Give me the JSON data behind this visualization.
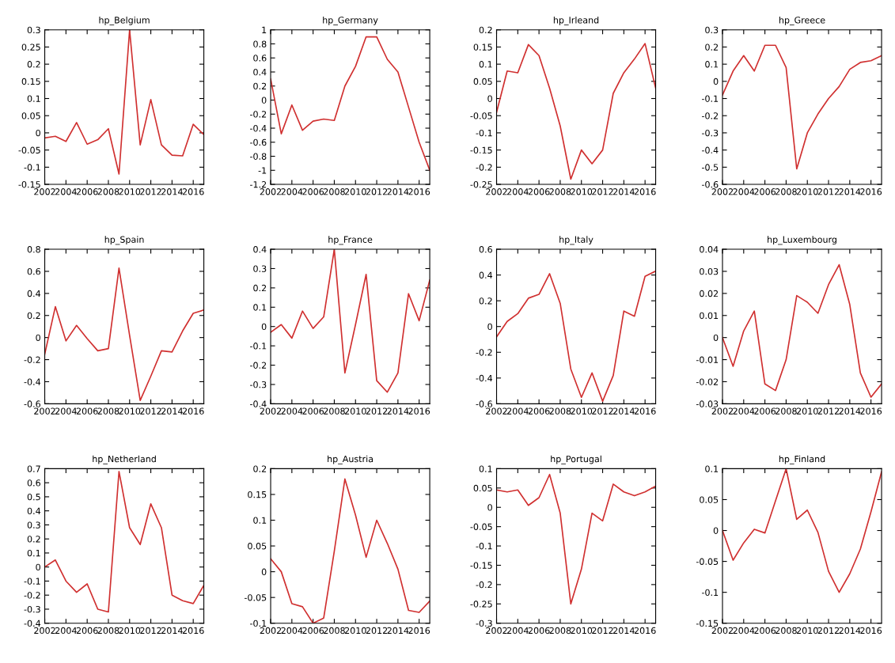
{
  "chart_data": [
    {
      "type": "line",
      "title": "hp_Belgium",
      "x": [
        2002,
        2003,
        2004,
        2005,
        2006,
        2007,
        2008,
        2009,
        2010,
        2011,
        2012,
        2013,
        2014,
        2015,
        2016,
        2017
      ],
      "series": [
        {
          "color": "#d03030",
          "values": [
            -0.015,
            -0.01,
            -0.025,
            0.03,
            -0.033,
            -0.02,
            0.012,
            -0.12,
            0.3,
            -0.035,
            0.097,
            -0.035,
            -0.065,
            -0.067,
            0.025,
            -0.005
          ]
        }
      ],
      "xlim": [
        2002,
        2017
      ],
      "xticks": [
        2002,
        2004,
        2006,
        2008,
        2010,
        2012,
        2014,
        2016
      ],
      "ylim": [
        -0.15,
        0.3
      ],
      "yticks": [
        -0.15,
        -0.1,
        -0.05,
        0,
        0.05,
        0.1,
        0.15,
        0.2,
        0.25,
        0.3
      ],
      "grid": false
    },
    {
      "type": "line",
      "title": "hp_Germany",
      "x": [
        2002,
        2003,
        2004,
        2005,
        2006,
        2007,
        2008,
        2009,
        2010,
        2011,
        2012,
        2013,
        2014,
        2015,
        2016,
        2017
      ],
      "series": [
        {
          "color": "#d03030",
          "values": [
            0.3,
            -0.48,
            -0.07,
            -0.43,
            -0.3,
            -0.27,
            -0.29,
            0.2,
            0.48,
            0.9,
            0.9,
            0.58,
            0.4,
            -0.1,
            -0.6,
            -1.0
          ]
        }
      ],
      "xlim": [
        2002,
        2017
      ],
      "xticks": [
        2002,
        2004,
        2006,
        2008,
        2010,
        2012,
        2014,
        2016
      ],
      "ylim": [
        -1.2,
        1
      ],
      "yticks": [
        -1.2,
        -1,
        -0.8,
        -0.6,
        -0.4,
        -0.2,
        0,
        0.2,
        0.4,
        0.6,
        0.8,
        1
      ],
      "grid": false
    },
    {
      "type": "line",
      "title": "hp_Irleand",
      "x": [
        2002,
        2003,
        2004,
        2005,
        2006,
        2007,
        2008,
        2009,
        2010,
        2011,
        2012,
        2013,
        2014,
        2015,
        2016,
        2017
      ],
      "series": [
        {
          "color": "#d03030",
          "values": [
            -0.04,
            0.08,
            0.075,
            0.157,
            0.125,
            0.03,
            -0.08,
            -0.235,
            -0.15,
            -0.19,
            -0.15,
            0.015,
            0.075,
            0.115,
            0.16,
            0.03
          ]
        }
      ],
      "xlim": [
        2002,
        2017
      ],
      "xticks": [
        2002,
        2004,
        2006,
        2008,
        2010,
        2012,
        2014,
        2016
      ],
      "ylim": [
        -0.25,
        0.2
      ],
      "yticks": [
        -0.25,
        -0.2,
        -0.15,
        -0.1,
        -0.05,
        0,
        0.05,
        0.1,
        0.15,
        0.2
      ],
      "grid": false
    },
    {
      "type": "line",
      "title": "hp_Greece",
      "x": [
        2002,
        2003,
        2004,
        2005,
        2006,
        2007,
        2008,
        2009,
        2010,
        2011,
        2012,
        2013,
        2014,
        2015,
        2016,
        2017
      ],
      "series": [
        {
          "color": "#d03030",
          "values": [
            -0.08,
            0.06,
            0.15,
            0.06,
            0.21,
            0.21,
            0.08,
            -0.51,
            -0.3,
            -0.19,
            -0.1,
            -0.03,
            0.07,
            0.11,
            0.12,
            0.15
          ]
        }
      ],
      "xlim": [
        2002,
        2017
      ],
      "xticks": [
        2002,
        2004,
        2006,
        2008,
        2010,
        2012,
        2014,
        2016
      ],
      "ylim": [
        -0.6,
        0.3
      ],
      "yticks": [
        -0.6,
        -0.5,
        -0.4,
        -0.3,
        -0.2,
        -0.1,
        0,
        0.1,
        0.2,
        0.3
      ],
      "grid": false
    },
    {
      "type": "line",
      "title": "hp_Spain",
      "x": [
        2002,
        2003,
        2004,
        2005,
        2006,
        2007,
        2008,
        2009,
        2010,
        2011,
        2012,
        2013,
        2014,
        2015,
        2016,
        2017
      ],
      "series": [
        {
          "color": "#d03030",
          "values": [
            -0.15,
            0.28,
            -0.03,
            0.11,
            -0.01,
            -0.12,
            -0.1,
            0.63,
            0.02,
            -0.57,
            -0.35,
            -0.12,
            -0.13,
            0.06,
            0.22,
            0.25
          ]
        }
      ],
      "xlim": [
        2002,
        2017
      ],
      "xticks": [
        2002,
        2004,
        2006,
        2008,
        2010,
        2012,
        2014,
        2016
      ],
      "ylim": [
        -0.6,
        0.8
      ],
      "yticks": [
        -0.6,
        -0.4,
        -0.2,
        0,
        0.2,
        0.4,
        0.6,
        0.8
      ],
      "grid": false
    },
    {
      "type": "line",
      "title": "hp_France",
      "x": [
        2002,
        2003,
        2004,
        2005,
        2006,
        2007,
        2008,
        2009,
        2010,
        2011,
        2012,
        2013,
        2014,
        2015,
        2016,
        2017
      ],
      "series": [
        {
          "color": "#d03030",
          "values": [
            -0.03,
            0.01,
            -0.06,
            0.08,
            -0.01,
            0.05,
            0.4,
            -0.24,
            0.01,
            0.27,
            -0.28,
            -0.34,
            -0.24,
            0.17,
            0.03,
            0.24
          ]
        }
      ],
      "xlim": [
        2002,
        2017
      ],
      "xticks": [
        2002,
        2004,
        2006,
        2008,
        2010,
        2012,
        2014,
        2016
      ],
      "ylim": [
        -0.4,
        0.4
      ],
      "yticks": [
        -0.4,
        -0.3,
        -0.2,
        -0.1,
        0,
        0.1,
        0.2,
        0.3,
        0.4
      ],
      "grid": false
    },
    {
      "type": "line",
      "title": "hp_Italy",
      "x": [
        2002,
        2003,
        2004,
        2005,
        2006,
        2007,
        2008,
        2009,
        2010,
        2011,
        2012,
        2013,
        2014,
        2015,
        2016,
        2017
      ],
      "series": [
        {
          "color": "#d03030",
          "values": [
            -0.08,
            0.04,
            0.1,
            0.22,
            0.25,
            0.41,
            0.18,
            -0.33,
            -0.55,
            -0.36,
            -0.58,
            -0.38,
            0.12,
            0.08,
            0.39,
            0.43
          ]
        }
      ],
      "xlim": [
        2002,
        2017
      ],
      "xticks": [
        2002,
        2004,
        2006,
        2008,
        2010,
        2012,
        2014,
        2016
      ],
      "ylim": [
        -0.6,
        0.6
      ],
      "yticks": [
        -0.6,
        -0.4,
        -0.2,
        0,
        0.2,
        0.4,
        0.6
      ],
      "grid": false
    },
    {
      "type": "line",
      "title": "hp_Luxembourg",
      "x": [
        2002,
        2003,
        2004,
        2005,
        2006,
        2007,
        2008,
        2009,
        2010,
        2011,
        2012,
        2013,
        2014,
        2015,
        2016,
        2017
      ],
      "series": [
        {
          "color": "#d03030",
          "values": [
            0,
            -0.013,
            0.003,
            0.012,
            -0.021,
            -0.024,
            -0.01,
            0.019,
            0.016,
            0.011,
            0.024,
            0.033,
            0.015,
            -0.016,
            -0.027,
            -0.021
          ]
        }
      ],
      "xlim": [
        2002,
        2017
      ],
      "xticks": [
        2002,
        2004,
        2006,
        2008,
        2010,
        2012,
        2014,
        2016
      ],
      "ylim": [
        -0.03,
        0.04
      ],
      "yticks": [
        -0.03,
        -0.02,
        -0.01,
        0,
        0.01,
        0.02,
        0.03,
        0.04
      ],
      "grid": false
    },
    {
      "type": "line",
      "title": "hp_Netherland",
      "x": [
        2002,
        2003,
        2004,
        2005,
        2006,
        2007,
        2008,
        2009,
        2010,
        2011,
        2012,
        2013,
        2014,
        2015,
        2016,
        2017
      ],
      "series": [
        {
          "color": "#d03030",
          "values": [
            0,
            0.05,
            -0.1,
            -0.18,
            -0.12,
            -0.3,
            -0.32,
            0.68,
            0.28,
            0.16,
            0.45,
            0.28,
            -0.2,
            -0.24,
            -0.26,
            -0.13
          ]
        }
      ],
      "xlim": [
        2002,
        2017
      ],
      "xticks": [
        2002,
        2004,
        2006,
        2008,
        2010,
        2012,
        2014,
        2016
      ],
      "ylim": [
        -0.4,
        0.7
      ],
      "yticks": [
        -0.4,
        -0.3,
        -0.2,
        -0.1,
        0,
        0.1,
        0.2,
        0.3,
        0.4,
        0.5,
        0.6,
        0.7
      ],
      "grid": false
    },
    {
      "type": "line",
      "title": "hp_Austria",
      "x": [
        2002,
        2003,
        2004,
        2005,
        2006,
        2007,
        2008,
        2009,
        2010,
        2011,
        2012,
        2013,
        2014,
        2015,
        2016,
        2017
      ],
      "series": [
        {
          "color": "#d03030",
          "values": [
            0.025,
            0.0,
            -0.062,
            -0.068,
            -0.1,
            -0.09,
            0.04,
            0.18,
            0.11,
            0.028,
            0.1,
            0.055,
            0.005,
            -0.075,
            -0.079,
            -0.057
          ]
        }
      ],
      "xlim": [
        2002,
        2017
      ],
      "xticks": [
        2002,
        2004,
        2006,
        2008,
        2010,
        2012,
        2014,
        2016
      ],
      "ylim": [
        -0.1,
        0.2
      ],
      "yticks": [
        -0.1,
        -0.05,
        0,
        0.05,
        0.1,
        0.15,
        0.2
      ],
      "grid": false
    },
    {
      "type": "line",
      "title": "hp_Portugal",
      "x": [
        2002,
        2003,
        2004,
        2005,
        2006,
        2007,
        2008,
        2009,
        2010,
        2011,
        2012,
        2013,
        2014,
        2015,
        2016,
        2017
      ],
      "series": [
        {
          "color": "#d03030",
          "values": [
            0.045,
            0.04,
            0.045,
            0.005,
            0.025,
            0.085,
            -0.015,
            -0.25,
            -0.16,
            -0.015,
            -0.035,
            0.06,
            0.04,
            0.03,
            0.04,
            0.055
          ]
        }
      ],
      "xlim": [
        2002,
        2017
      ],
      "xticks": [
        2002,
        2004,
        2006,
        2008,
        2010,
        2012,
        2014,
        2016
      ],
      "ylim": [
        -0.3,
        0.1
      ],
      "yticks": [
        -0.3,
        -0.25,
        -0.2,
        -0.15,
        -0.1,
        -0.05,
        0,
        0.05,
        0.1
      ],
      "grid": false
    },
    {
      "type": "line",
      "title": "hp_Finland",
      "x": [
        2002,
        2003,
        2004,
        2005,
        2006,
        2007,
        2008,
        2009,
        2010,
        2011,
        2012,
        2013,
        2014,
        2015,
        2016,
        2017
      ],
      "series": [
        {
          "color": "#d03030",
          "values": [
            0,
            -0.048,
            -0.02,
            0.002,
            -0.004,
            0.048,
            0.1,
            0.018,
            0.033,
            -0.003,
            -0.066,
            -0.1,
            -0.07,
            -0.03,
            0.03,
            0.095
          ]
        }
      ],
      "xlim": [
        2002,
        2017
      ],
      "xticks": [
        2002,
        2004,
        2006,
        2008,
        2010,
        2012,
        2014,
        2016
      ],
      "ylim": [
        -0.15,
        0.1
      ],
      "yticks": [
        -0.15,
        -0.1,
        -0.05,
        0,
        0.05,
        0.1
      ],
      "grid": false
    }
  ]
}
